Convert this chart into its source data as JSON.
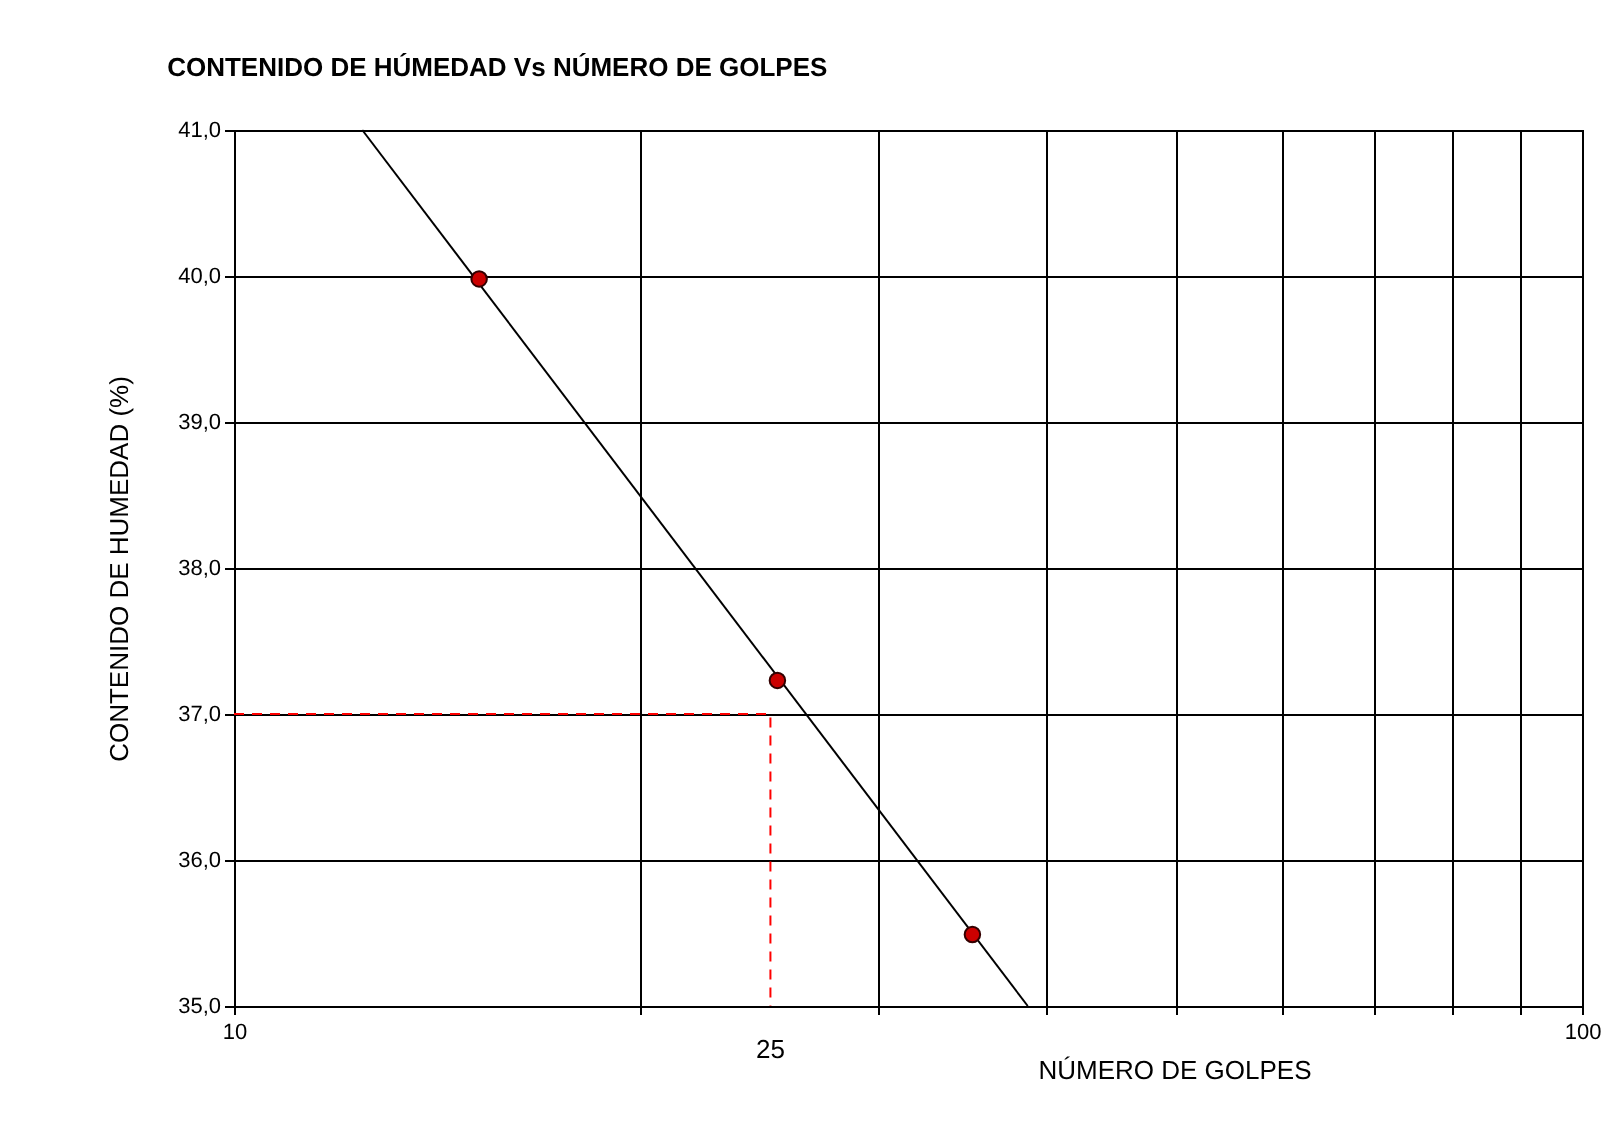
{
  "chart_data": {
    "type": "scatter",
    "title": "CONTENIDO DE HÚMEDAD Vs NÚMERO DE GOLPES",
    "xlabel": "NÚMERO DE GOLPES",
    "ylabel": "CONTENIDO DE HUMEDAD (%)",
    "log": "x",
    "xlim": [
      10,
      100
    ],
    "ylim": [
      35,
      41
    ],
    "xticks": [
      10,
      {
        "value": 20,
        "label": null
      },
      {
        "value": 30,
        "label": null
      },
      {
        "value": 40,
        "label": null
      },
      {
        "value": 50,
        "label": null
      },
      {
        "value": 60,
        "label": null
      },
      {
        "value": 70,
        "label": null
      },
      {
        "value": 80,
        "label": null
      },
      {
        "value": 90,
        "label": null
      },
      100
    ],
    "yticks": [
      {
        "value": 35,
        "label": "35,0"
      },
      {
        "value": 36,
        "label": "36,0"
      },
      {
        "value": 37,
        "label": "37,0"
      },
      {
        "value": 38,
        "label": "38,0"
      },
      {
        "value": 39,
        "label": "39,0"
      },
      {
        "value": 40,
        "label": "40,0"
      },
      {
        "value": 41,
        "label": "41,0"
      }
    ],
    "grid": true,
    "marker": "circle",
    "series": [
      {
        "type": "line",
        "marker": "none",
        "color": "#000000",
        "x": [
          12.45,
          38.8
        ],
        "values": [
          41,
          35
        ]
      },
      {
        "type": "line",
        "marker": "none",
        "color": "#ff0000",
        "line_style": "dashed",
        "x": [
          10,
          25,
          25
        ],
        "values": [
          37,
          37,
          35
        ]
      },
      {
        "color": "#cc0000",
        "x": [
          15.2,
          25.3,
          35.3
        ],
        "values": [
          39.98,
          37.23,
          35.49
        ]
      }
    ],
    "annotations": [
      {
        "text": "25",
        "x": 25,
        "y": 35
      }
    ]
  }
}
